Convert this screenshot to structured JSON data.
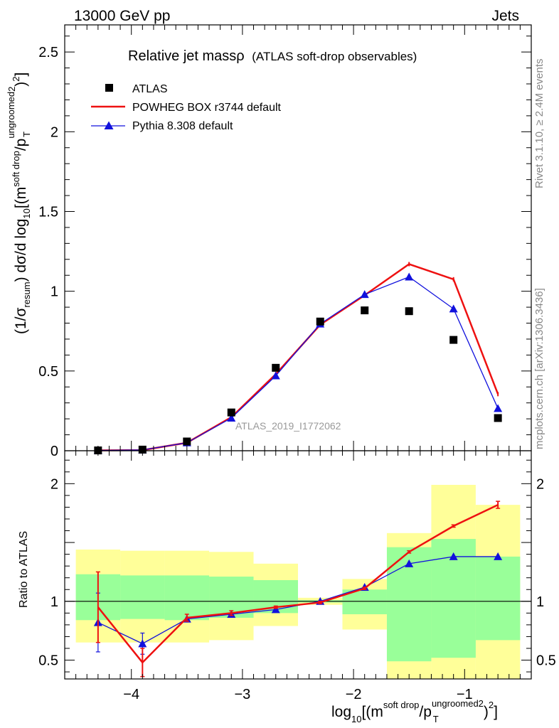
{
  "header": {
    "left": "13000 GeV pp",
    "right": "Jets"
  },
  "side_text": {
    "rivet": "Rivet 3.1.10, ≥ 2.4M events",
    "mcplots": "mcplots.cern.ch [arXiv:1306.3436]"
  },
  "watermark": "ATLAS_2019_I1772062",
  "colors": {
    "data": "#000000",
    "powheg": "#ee1111",
    "pythia": "#1111dd",
    "band_outer": "#ffff99",
    "band_inner": "#99ff99"
  },
  "chart_data": [
    {
      "type": "scatter",
      "panel": "main",
      "title": "Relative jet massρ",
      "title_sub": "(ATLAS soft-drop observables)",
      "ylabel": "(1/σresum) dσ/d log10[(msoft drop/pTungroomed)2]",
      "xlim": [
        -4.6,
        -0.4
      ],
      "ylim": [
        0,
        2.67
      ],
      "yticks": [
        0,
        0.5,
        1,
        1.5,
        2,
        2.5
      ],
      "ytick_labels": [
        "0",
        "0.5",
        "1",
        "1.5",
        "2",
        "2.5"
      ],
      "legend_position": "top-left",
      "x": [
        -4.3,
        -3.9,
        -3.5,
        -3.1,
        -2.7,
        -2.3,
        -1.9,
        -1.5,
        -1.1,
        -0.7
      ],
      "series": [
        {
          "name": "ATLAS",
          "style": "markers",
          "values": [
            0.002,
            0.007,
            0.058,
            0.24,
            0.52,
            0.81,
            0.88,
            0.875,
            0.695,
            0.205
          ]
        },
        {
          "name": "POWHEG BOX r3744 default",
          "style": "line",
          "values": [
            0.002,
            0.004,
            0.05,
            0.21,
            0.48,
            0.79,
            0.975,
            1.17,
            1.075,
            0.355
          ]
        },
        {
          "name": "Pythia 8.308 default",
          "style": "line-markers",
          "values": [
            0.002,
            0.005,
            0.05,
            0.205,
            0.47,
            0.795,
            0.98,
            1.09,
            0.89,
            0.265
          ]
        }
      ]
    },
    {
      "type": "line",
      "panel": "ratio",
      "ylabel": "Ratio to ATLAS",
      "xlabel": "log10[(msoft drop/pTungroomed)2]",
      "xlim": [
        -4.6,
        -0.4
      ],
      "ylim": [
        0.34,
        2.28
      ],
      "xticks": [
        -4,
        -3,
        -2,
        -1
      ],
      "xtick_labels": [
        "−4",
        "−3",
        "−2",
        "−1"
      ],
      "yticks": [
        0.5,
        1,
        2
      ],
      "ytick_labels": [
        "0.5",
        "1",
        "2"
      ],
      "reference_line": 1,
      "band_edges": [
        -4.5,
        -4.1,
        -3.7,
        -3.3,
        -2.9,
        -2.5,
        -2.1,
        -1.7,
        -1.3,
        -0.9,
        -0.5
      ],
      "band_outer_low": [
        0.65,
        0.65,
        0.65,
        0.67,
        0.79,
        0.97,
        0.76,
        0.34,
        0.34,
        0.34
      ],
      "band_outer_high": [
        1.44,
        1.43,
        1.43,
        1.42,
        1.32,
        1.03,
        1.19,
        1.58,
        1.99,
        1.82
      ],
      "band_inner_low": [
        0.84,
        0.85,
        0.84,
        0.86,
        0.9,
        0.99,
        0.89,
        0.49,
        0.52,
        0.67
      ],
      "band_inner_high": [
        1.23,
        1.22,
        1.22,
        1.21,
        1.18,
        1.01,
        1.1,
        1.46,
        1.53,
        1.38
      ],
      "x": [
        -4.3,
        -3.9,
        -3.5,
        -3.1,
        -2.7,
        -2.3,
        -1.9,
        -1.5,
        -1.1,
        -0.7
      ],
      "series": [
        {
          "name": "POWHEG BOX r3744 default",
          "values": [
            0.95,
            0.48,
            0.86,
            0.9,
            0.95,
            0.99,
            1.11,
            1.42,
            1.64,
            1.82
          ],
          "err": [
            0.3,
            0.12,
            0.03,
            0.02,
            0.01,
            0.01,
            0.01,
            0.01,
            0.01,
            0.03
          ]
        },
        {
          "name": "Pythia 8.308 default",
          "values": [
            0.82,
            0.64,
            0.85,
            0.89,
            0.93,
            1.0,
            1.12,
            1.32,
            1.38,
            1.38
          ],
          "err": [
            0.25,
            0.09,
            0.03,
            0.02,
            0.01,
            0.01,
            0.01,
            0.01,
            0.01,
            0.01
          ]
        }
      ]
    }
  ]
}
